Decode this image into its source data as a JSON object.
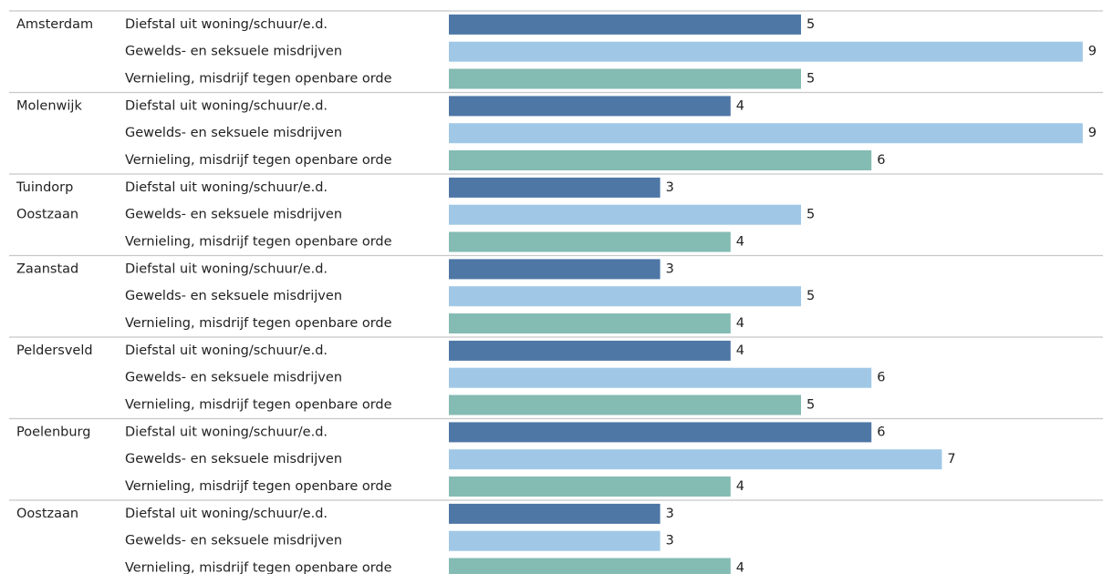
{
  "chart_data": {
    "type": "bar",
    "orientation": "horizontal",
    "xlim": [
      0,
      9
    ],
    "grid": false,
    "legend": "none",
    "categories": [
      "Diefstal uit woning/schuur/e.d.",
      "Gewelds- en seksuele misdrijven",
      "Vernieling, misdrijf tegen openbare orde"
    ],
    "colors": [
      "#4e77a6",
      "#a0c8e6",
      "#84bbb3"
    ],
    "groups": [
      {
        "label_lines": [
          "Amsterdam"
        ],
        "values": [
          5,
          9,
          5
        ]
      },
      {
        "label_lines": [
          "Molenwijk"
        ],
        "values": [
          4,
          9,
          6
        ]
      },
      {
        "label_lines": [
          "Tuindorp",
          "Oostzaan"
        ],
        "values": [
          3,
          5,
          4
        ]
      },
      {
        "label_lines": [
          "Zaanstad"
        ],
        "values": [
          3,
          5,
          4
        ]
      },
      {
        "label_lines": [
          "Peldersveld"
        ],
        "values": [
          4,
          6,
          5
        ]
      },
      {
        "label_lines": [
          "Poelenburg"
        ],
        "values": [
          6,
          7,
          4
        ]
      },
      {
        "label_lines": [
          "Oostzaan"
        ],
        "values": [
          3,
          3,
          4
        ]
      }
    ]
  }
}
